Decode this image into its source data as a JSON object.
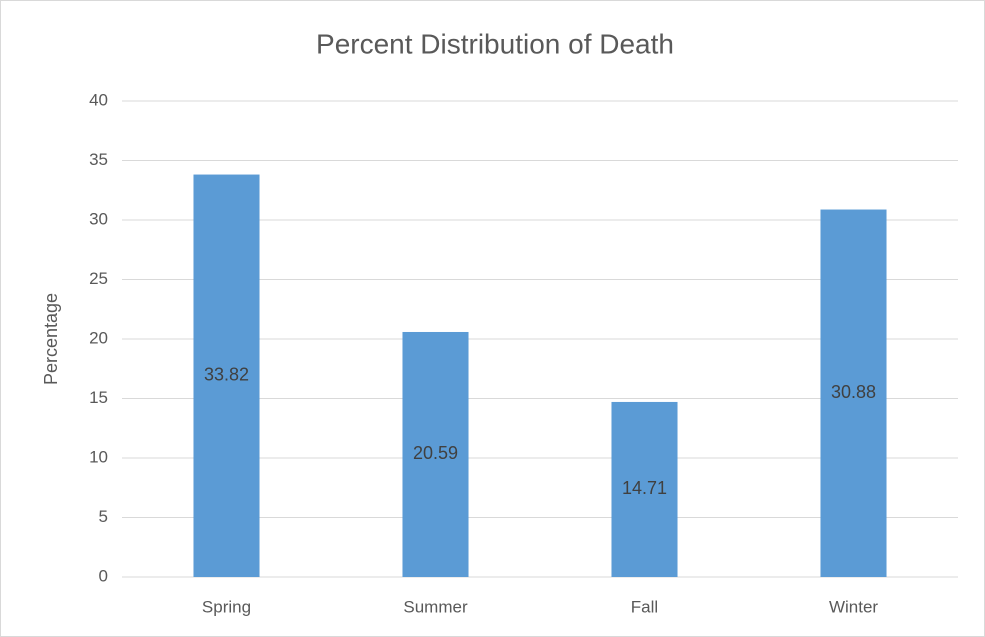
{
  "chart_data": {
    "type": "bar",
    "title": "Percent Distribution of Death",
    "y_label": "Percentage",
    "categories": [
      "Spring",
      "Summer",
      "Fall",
      "Winter"
    ],
    "values": [
      33.82,
      20.59,
      14.71,
      30.88
    ],
    "color": "#5b9bd5",
    "ylim": [
      0,
      40
    ],
    "yticks": [
      0,
      5,
      10,
      15,
      20,
      25,
      30,
      35,
      40
    ],
    "grid": true,
    "data_labels": true
  }
}
